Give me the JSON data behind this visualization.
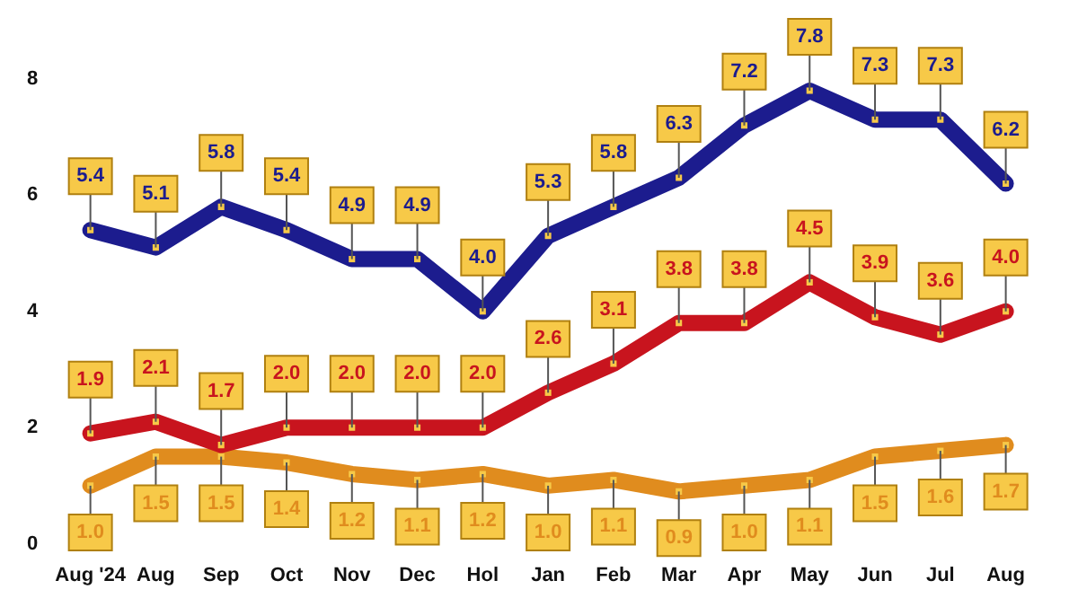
{
  "chart_data": {
    "type": "line",
    "categories": [
      "Aug '24",
      "Aug",
      "Sep",
      "Oct",
      "Nov",
      "Dec",
      "Hol",
      "Jan",
      "Feb",
      "Mar",
      "Apr",
      "May",
      "Jun",
      "Jul",
      "Aug"
    ],
    "series": [
      {
        "color": "#1c1c8e",
        "values": [
          5.4,
          5.1,
          5.8,
          5.4,
          4.9,
          4.9,
          4.0,
          5.3,
          5.8,
          6.3,
          7.2,
          7.8,
          7.3,
          7.3,
          6.2
        ],
        "value_labels": [
          "5.4",
          "5.1",
          "5.8",
          "5.4",
          "4.9",
          "4.9",
          "4.0",
          "5.3",
          "5.8",
          "6.3",
          "7.2",
          "7.8",
          "7.3",
          "7.3",
          "6.2"
        ]
      },
      {
        "color": "#c8141e",
        "values": [
          1.9,
          2.1,
          1.7,
          2.0,
          2.0,
          2.0,
          2.0,
          2.6,
          3.1,
          3.8,
          3.8,
          4.5,
          3.9,
          3.6,
          4.0
        ],
        "value_labels": [
          "1.9",
          "2.1",
          "1.7",
          "2.0",
          "2.0",
          "2.0",
          "2.0",
          "2.6",
          "3.1",
          "3.8",
          "3.8",
          "4.5",
          "3.9",
          "3.6",
          "4.0"
        ]
      },
      {
        "color": "#e08c1e",
        "values": [
          1.0,
          1.5,
          1.5,
          1.4,
          1.2,
          1.1,
          1.2,
          1.0,
          1.1,
          0.9,
          1.0,
          1.1,
          1.5,
          1.6,
          1.7
        ],
        "value_labels": [
          "1.0",
          "1.5",
          "1.5",
          "1.4",
          "1.2",
          "1.1",
          "1.2",
          "1.0",
          "1.1",
          "0.9",
          "1.0",
          "1.1",
          "1.5",
          "1.6",
          "1.7"
        ]
      }
    ],
    "ylim": [
      0,
      8
    ],
    "yticks": [
      0,
      2,
      4,
      6,
      8
    ],
    "grid": false,
    "legend": false,
    "marker": "square"
  }
}
